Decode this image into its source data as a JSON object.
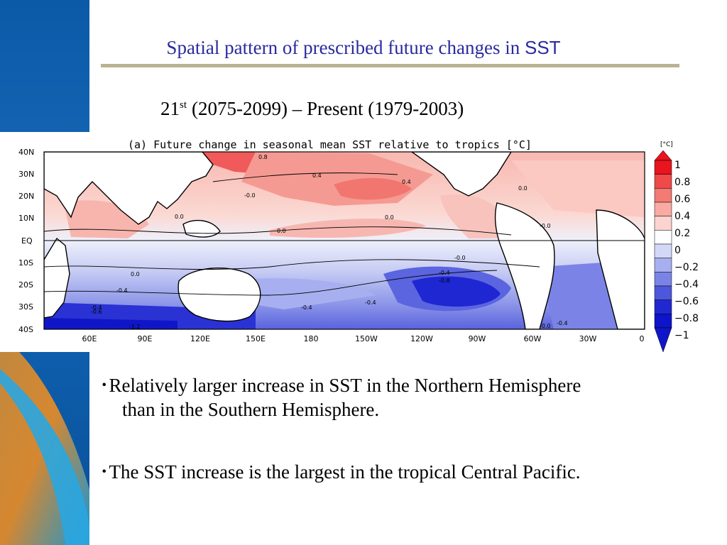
{
  "slide": {
    "title_text": "Spatial pattern of prescribed future changes in ",
    "title_sst": "SST",
    "subtitle_prefix": "21",
    "subtitle_sup": "st",
    "subtitle_rest": "(2075-2099) – Present (1979-2003)"
  },
  "map": {
    "panel_title": "(a) Future change in seasonal mean SST relative to tropics [°C]",
    "lat_labels": [
      "40N",
      "30N",
      "20N",
      "10N",
      "EQ",
      "10S",
      "20S",
      "30S",
      "40S"
    ],
    "lon_labels": [
      "60E",
      "90E",
      "120E",
      "150E",
      "180",
      "150W",
      "120W",
      "90W",
      "60W",
      "30W",
      "0"
    ],
    "contour_labels": [
      "0.8",
      "0.4",
      "0.4",
      "-0.0",
      "0.0",
      "0.0",
      "0.0",
      "-0.0",
      "0.0",
      "-0.0",
      "-0.4",
      "-0.8",
      "-0.4",
      "-0.4",
      "-0.4",
      "-0.6",
      "-1.2",
      "-0.4",
      "-0.0",
      "-0.4",
      "0.0"
    ],
    "colorbar_unit": "[°C]",
    "colorbar_labels": [
      "1",
      "0.8",
      "0.6",
      "0.4",
      "0.2",
      "0",
      "−0.2",
      "−0.4",
      "−0.6",
      "−0.8",
      "−1"
    ],
    "colorbar_colors": [
      "#e8141e",
      "#f0494a",
      "#f47a74",
      "#f8aaa3",
      "#fbd4cf",
      "#ffffff",
      "#d4d8f8",
      "#a7aff0",
      "#7b84e6",
      "#4d57dc",
      "#2128d2",
      "#0e14c9"
    ]
  },
  "bullets": [
    {
      "marker": "･",
      "line1": "Relatively larger increase in SST in the Northern Hemisphere",
      "line2": "than in the Southern Hemisphere."
    },
    {
      "marker": "･",
      "line1": "The SST increase is the largest in the tropical Central Pacific.",
      "line2": ""
    }
  ]
}
